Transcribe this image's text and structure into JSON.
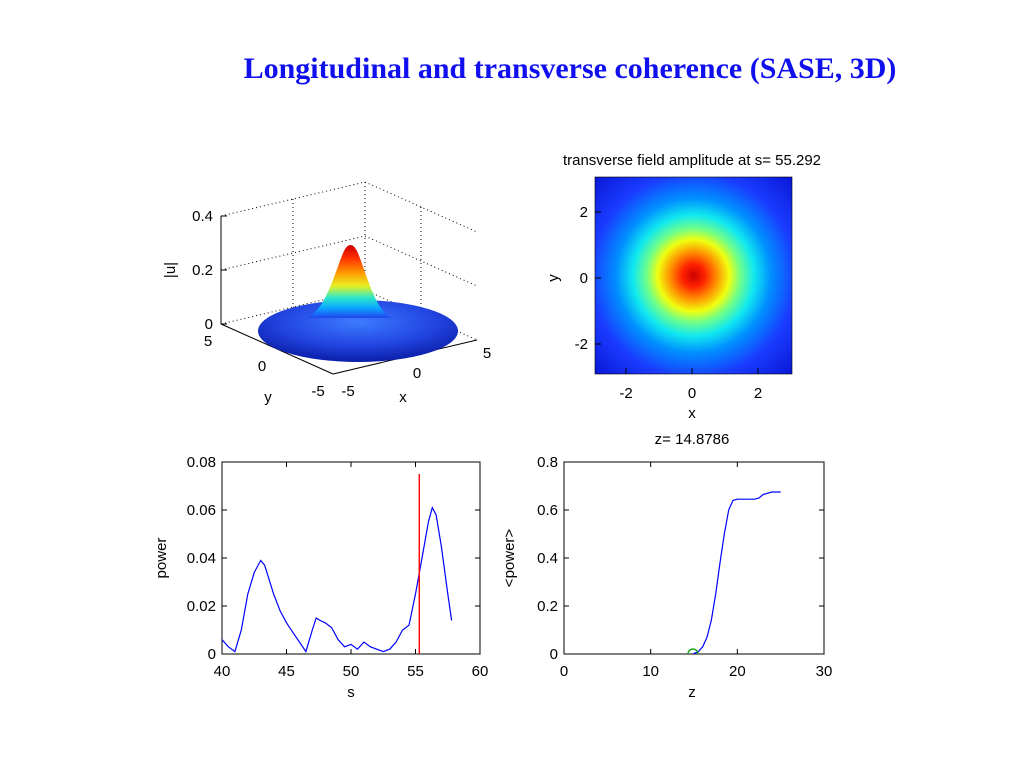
{
  "slide": {
    "title": "Longitudinal and transverse coherence (SASE, 3D)"
  },
  "colors": {
    "title": "#1010ee",
    "line": "#0000ff",
    "marker_line": "#ff0000",
    "marker_circle": "#00a000"
  },
  "chart_data": [
    {
      "type": "surface",
      "xlabel": "x",
      "ylabel": "y",
      "zlabel": "|u|",
      "x_ticks": [
        "-5",
        "0",
        "5"
      ],
      "y_ticks": [
        "-5",
        "0",
        "5"
      ],
      "z_ticks": [
        "0",
        "0.2",
        "0.4"
      ],
      "xlim": [
        -5,
        5
      ],
      "ylim": [
        -5,
        5
      ],
      "zlim": [
        0,
        0.4
      ],
      "peak": 0.3,
      "grid": true,
      "colormap": "jet"
    },
    {
      "type": "heatmap",
      "title": "transverse field amplitude at s= 55.292",
      "xlabel": "x",
      "ylabel": "y",
      "x_ticks": [
        "-2",
        "0",
        "2"
      ],
      "y_ticks": [
        "2",
        "0",
        "-2"
      ],
      "xlim": [
        -3,
        3
      ],
      "ylim": [
        -3,
        3
      ],
      "colormap": "jet"
    },
    {
      "type": "line",
      "xlabel": "s",
      "ylabel": "power",
      "xlim": [
        40,
        60
      ],
      "ylim": [
        0,
        0.08
      ],
      "x_ticks": [
        "40",
        "45",
        "50",
        "55",
        "60"
      ],
      "y_ticks": [
        "0",
        "0.02",
        "0.04",
        "0.06",
        "0.08"
      ],
      "marker_s": 55.292,
      "series": [
        {
          "x": [
            40,
            40.5,
            41,
            41.5,
            42,
            42.5,
            43,
            43.3,
            43.6,
            44,
            44.5,
            45,
            45.5,
            46,
            46.5,
            47,
            47.3,
            47.6,
            48,
            48.5,
            49,
            49.5,
            50,
            50.5,
            51,
            51.5,
            52,
            52.5,
            53,
            53.5,
            54,
            54.5,
            55,
            55.5,
            56,
            56.3,
            56.6,
            57,
            57.5,
            57.8
          ],
          "y": [
            0.006,
            0.003,
            0.001,
            0.01,
            0.025,
            0.034,
            0.039,
            0.037,
            0.032,
            0.025,
            0.018,
            0.013,
            0.009,
            0.005,
            0.001,
            0.01,
            0.015,
            0.014,
            0.013,
            0.011,
            0.006,
            0.003,
            0.004,
            0.002,
            0.005,
            0.003,
            0.002,
            0.001,
            0.002,
            0.005,
            0.01,
            0.012,
            0.025,
            0.04,
            0.055,
            0.061,
            0.058,
            0.045,
            0.025,
            0.014
          ]
        }
      ]
    },
    {
      "type": "line",
      "title": "z= 14.8786",
      "xlabel": "z",
      "ylabel": "<power>",
      "xlim": [
        0,
        30
      ],
      "ylim": [
        0,
        0.8
      ],
      "x_ticks": [
        "0",
        "10",
        "20",
        "30"
      ],
      "y_ticks": [
        "0",
        "0.2",
        "0.4",
        "0.6",
        "0.8"
      ],
      "marker_point": [
        14.88,
        0.0
      ],
      "series": [
        {
          "x": [
            14.88,
            15.5,
            16,
            16.5,
            17,
            17.5,
            18,
            18.5,
            19,
            19.5,
            20,
            21,
            22,
            22.5,
            23,
            24,
            25
          ],
          "y": [
            0.0,
            0.01,
            0.03,
            0.07,
            0.14,
            0.25,
            0.38,
            0.5,
            0.6,
            0.64,
            0.645,
            0.645,
            0.645,
            0.65,
            0.665,
            0.675,
            0.675
          ]
        }
      ]
    }
  ]
}
